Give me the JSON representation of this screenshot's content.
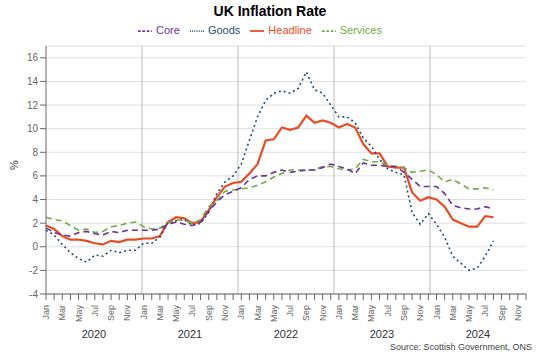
{
  "chart_data": {
    "type": "line",
    "title": "UK Inflation Rate",
    "ylabel": "%",
    "annotations": [
      "Source: Scottish Government, ONS"
    ],
    "categories": [
      "Jan",
      null,
      "Mar",
      null,
      "May",
      null,
      "Jul",
      null,
      "Sep",
      null,
      "Nov",
      null,
      "Jan",
      null,
      "Mar",
      null,
      "May",
      null,
      "Jul",
      null,
      "Sep",
      null,
      "Nov",
      null,
      "Jan",
      null,
      "Mar",
      null,
      "May",
      null,
      "Jul",
      null,
      "Sep",
      null,
      "Nov",
      null,
      "Jan",
      null,
      "Mar",
      null,
      "May",
      null,
      "Jul",
      null,
      "Sep",
      null,
      "Nov",
      null,
      "Jan",
      null,
      "Mar",
      null,
      "May",
      null,
      "Jul",
      null,
      "Sep",
      null,
      "Nov",
      null
    ],
    "year_labels": [
      2020,
      2021,
      2022,
      2023,
      2024
    ],
    "series": [
      {
        "name": "Headline",
        "color": "#e84c24",
        "line_style": "solid",
        "values": [
          1.8,
          1.5,
          0.9,
          0.6,
          0.6,
          0.5,
          0.3,
          0.2,
          0.5,
          0.4,
          0.6,
          0.6,
          0.7,
          0.7,
          0.9,
          2.1,
          2.5,
          2.4,
          2.0,
          2.1,
          3.1,
          4.2,
          5.1,
          5.4,
          5.5,
          6.2,
          7.0,
          9.0,
          9.1,
          10.1,
          9.9,
          10.1,
          11.1,
          10.5,
          10.7,
          10.5,
          10.1,
          10.4,
          10.1,
          8.7,
          7.9,
          7.9,
          6.8,
          6.7,
          6.7,
          4.6,
          3.9,
          4.2,
          4.0,
          3.4,
          2.3,
          2.0,
          1.7,
          1.7,
          2.6,
          2.5,
          null,
          null,
          null,
          null
        ]
      },
      {
        "name": "Goods",
        "color": "#1f4e79",
        "line_style": "dotted",
        "values": [
          1.4,
          1.0,
          0.2,
          -0.5,
          -1.0,
          -1.3,
          -0.7,
          -0.8,
          -0.3,
          -0.5,
          -0.3,
          -0.3,
          0.3,
          0.3,
          0.8,
          2.1,
          2.2,
          2.3,
          1.8,
          2.0,
          2.9,
          4.5,
          5.5,
          6.0,
          7.0,
          9.0,
          11.0,
          12.4,
          13.0,
          13.2,
          13.0,
          13.4,
          14.8,
          13.3,
          13.0,
          12.0,
          11.0,
          11.0,
          10.5,
          9.2,
          8.5,
          7.4,
          6.6,
          6.3,
          6.1,
          2.9,
          1.9,
          2.8,
          1.9,
          0.8,
          -0.8,
          -1.4,
          -2.0,
          -1.8,
          -0.8,
          0.5,
          null,
          null,
          null,
          null
        ]
      },
      {
        "name": "Services",
        "color": "#70ad47",
        "line_style": "dashed",
        "values": [
          2.5,
          2.3,
          2.2,
          1.8,
          1.4,
          1.5,
          1.2,
          1.3,
          1.7,
          1.8,
          2.0,
          2.1,
          1.7,
          1.5,
          1.6,
          2.0,
          2.3,
          2.2,
          2.0,
          2.3,
          3.4,
          3.9,
          4.7,
          4.8,
          4.9,
          5.0,
          5.2,
          5.5,
          5.9,
          6.2,
          6.5,
          6.5,
          6.5,
          6.5,
          6.8,
          6.8,
          6.6,
          6.5,
          6.6,
          7.4,
          7.2,
          7.2,
          6.9,
          6.8,
          6.7,
          6.3,
          6.4,
          6.5,
          6.1,
          5.5,
          5.7,
          5.3,
          4.9,
          4.9,
          5.0,
          4.8,
          null,
          null,
          null,
          null
        ]
      },
      {
        "name": "Core",
        "color": "#7030a0",
        "line_style": "dashed",
        "values": [
          1.6,
          1.2,
          1.0,
          0.9,
          1.2,
          1.3,
          1.1,
          1.0,
          1.3,
          1.2,
          1.4,
          1.4,
          1.4,
          1.4,
          1.5,
          1.9,
          2.1,
          1.9,
          1.8,
          2.1,
          3.0,
          3.8,
          4.4,
          4.7,
          5.0,
          5.7,
          6.0,
          6.0,
          6.3,
          6.5,
          6.3,
          6.4,
          6.5,
          6.5,
          6.7,
          7.0,
          6.8,
          6.6,
          6.2,
          7.1,
          6.9,
          6.9,
          6.8,
          6.8,
          6.3,
          5.7,
          5.1,
          5.1,
          5.1,
          4.5,
          3.5,
          3.3,
          3.2,
          3.2,
          3.4,
          3.2,
          null,
          null,
          null,
          null
        ]
      }
    ],
    "ylim": [
      -4,
      17
    ],
    "yticks": [
      -4,
      -2,
      0,
      2,
      4,
      6,
      8,
      10,
      12,
      14,
      16
    ],
    "grid": true,
    "legend": "top"
  }
}
